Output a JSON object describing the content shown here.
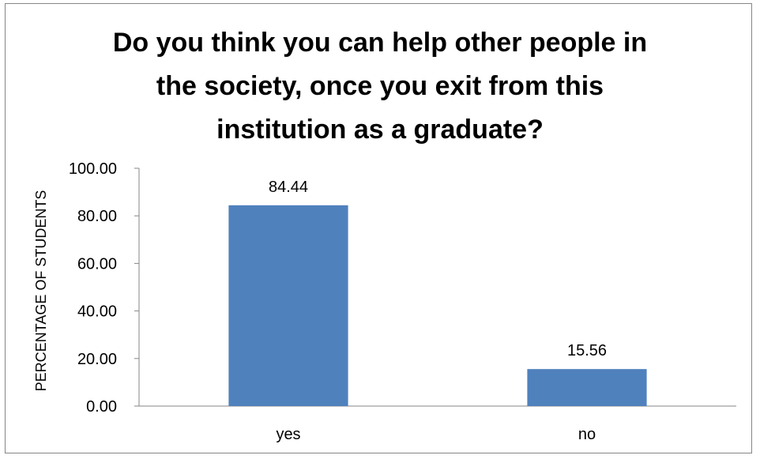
{
  "chart_data": {
    "type": "bar",
    "title": [
      "Do you think you can help other people in",
      "the society, once you exit from this",
      "institution as a graduate?"
    ],
    "xlabel": "",
    "ylabel": "PERCENTAGE OF STUDENTS",
    "categories": [
      "yes",
      "no"
    ],
    "values": [
      84.44,
      15.56
    ],
    "data_labels": [
      "84.44",
      "15.56"
    ],
    "ylim": [
      0,
      100
    ],
    "yticks": [
      "0.00",
      "20.00",
      "40.00",
      "60.00",
      "80.00",
      "100.00"
    ],
    "grid": false,
    "legend": "none",
    "bar_color": "#4F81BD"
  }
}
